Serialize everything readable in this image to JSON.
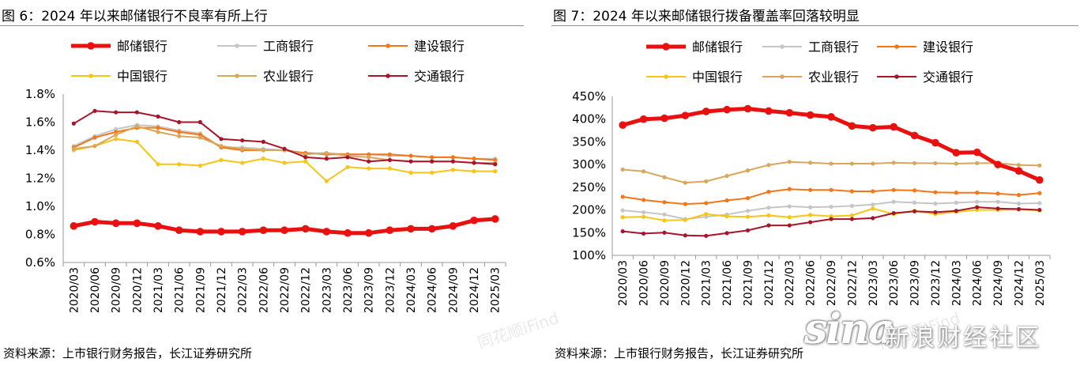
{
  "chart_data": [
    {
      "type": "line",
      "title": "图 6：2024 年以来邮储银行不良率有所上行",
      "source": "资料来源：上市银行财务报告，长江证券研究所",
      "ylim": [
        0.6,
        1.8
      ],
      "yticks": [
        "0.6%",
        "0.8%",
        "1.0%",
        "1.2%",
        "1.4%",
        "1.6%",
        "1.8%"
      ],
      "ytick_values": [
        0.6,
        0.8,
        1.0,
        1.2,
        1.4,
        1.6,
        1.8
      ],
      "legend_position": "top",
      "grid": false,
      "categories": [
        "2020/03",
        "2020/06",
        "2020/09",
        "2020/12",
        "2021/03",
        "2021/06",
        "2021/09",
        "2021/12",
        "2022/03",
        "2022/06",
        "2022/09",
        "2022/12",
        "2023/03",
        "2023/06",
        "2023/09",
        "2023/12",
        "2024/03",
        "2024/06",
        "2024/09",
        "2024/12",
        "2025/03"
      ],
      "series": [
        {
          "name": "邮储银行",
          "color": "#e8110f",
          "values": [
            0.86,
            0.89,
            0.88,
            0.88,
            0.86,
            0.83,
            0.82,
            0.82,
            0.82,
            0.83,
            0.83,
            0.84,
            0.82,
            0.81,
            0.81,
            0.83,
            0.84,
            0.84,
            0.86,
            0.9,
            0.91
          ]
        },
        {
          "name": "工商银行",
          "color": "#c6c6c6",
          "values": [
            1.43,
            1.5,
            1.55,
            1.58,
            1.57,
            1.54,
            1.52,
            1.42,
            1.42,
            1.41,
            1.4,
            1.38,
            1.38,
            1.37,
            1.37,
            1.36,
            1.36,
            1.35,
            1.35,
            1.34,
            1.34
          ]
        },
        {
          "name": "建设银行",
          "color": "#f2771a",
          "values": [
            1.42,
            1.49,
            1.53,
            1.56,
            1.56,
            1.53,
            1.51,
            1.42,
            1.4,
            1.4,
            1.4,
            1.38,
            1.37,
            1.37,
            1.37,
            1.37,
            1.36,
            1.35,
            1.35,
            1.34,
            1.33
          ]
        },
        {
          "name": "中国银行",
          "color": "#f6c517",
          "values": [
            1.4,
            1.43,
            1.48,
            1.46,
            1.3,
            1.3,
            1.29,
            1.33,
            1.31,
            1.34,
            1.31,
            1.32,
            1.18,
            1.28,
            1.27,
            1.27,
            1.24,
            1.24,
            1.26,
            1.25,
            1.25
          ]
        },
        {
          "name": "农业银行",
          "color": "#d9a75c",
          "values": [
            1.41,
            1.43,
            1.51,
            1.57,
            1.53,
            1.5,
            1.49,
            1.43,
            1.41,
            1.4,
            1.4,
            1.37,
            1.38,
            1.36,
            1.35,
            1.33,
            1.32,
            1.32,
            1.32,
            1.31,
            1.31
          ]
        },
        {
          "name": "交通银行",
          "color": "#a8152b",
          "values": [
            1.59,
            1.68,
            1.67,
            1.67,
            1.64,
            1.6,
            1.6,
            1.48,
            1.47,
            1.46,
            1.41,
            1.35,
            1.34,
            1.35,
            1.32,
            1.33,
            1.32,
            1.32,
            1.32,
            1.31,
            1.3
          ]
        }
      ]
    },
    {
      "type": "line",
      "title": "图 7：2024 年以来邮储银行拨备覆盖率回落较明显",
      "source": "资料来源：上市银行财务报告，长江证券研究所",
      "ylim": [
        100,
        450
      ],
      "yticks": [
        "100%",
        "150%",
        "200%",
        "250%",
        "300%",
        "350%",
        "400%",
        "450%"
      ],
      "ytick_values": [
        100,
        150,
        200,
        250,
        300,
        350,
        400,
        450
      ],
      "legend_position": "top",
      "grid": false,
      "categories": [
        "2020/03",
        "2020/06",
        "2020/09",
        "2020/12",
        "2021/03",
        "2021/06",
        "2021/09",
        "2021/12",
        "2022/03",
        "2022/06",
        "2022/09",
        "2022/12",
        "2023/03",
        "2023/06",
        "2023/09",
        "2023/12",
        "2024/03",
        "2024/06",
        "2024/09",
        "2024/12",
        "2025/03"
      ],
      "series": [
        {
          "name": "邮储银行",
          "color": "#e8110f",
          "values": [
            387,
            400,
            402,
            408,
            417,
            421,
            423,
            418,
            414,
            409,
            405,
            385,
            381,
            383,
            364,
            348,
            326,
            327,
            300,
            286,
            266
          ]
        },
        {
          "name": "工商银行",
          "color": "#c6c6c6",
          "values": [
            199,
            195,
            190,
            180,
            185,
            190,
            198,
            205,
            208,
            206,
            207,
            209,
            212,
            218,
            216,
            214,
            216,
            218,
            218,
            214,
            215
          ]
        },
        {
          "name": "建设银行",
          "color": "#f2771a",
          "values": [
            229,
            222,
            217,
            213,
            215,
            221,
            226,
            240,
            246,
            244,
            244,
            241,
            241,
            244,
            243,
            239,
            238,
            238,
            236,
            233,
            237
          ]
        },
        {
          "name": "中国银行",
          "color": "#f6c517",
          "values": [
            184,
            185,
            177,
            178,
            191,
            186,
            185,
            188,
            184,
            189,
            186,
            188,
            203,
            191,
            198,
            191,
            196,
            200,
            200,
            201,
            199
          ]
        },
        {
          "name": "农业银行",
          "color": "#d9a75c",
          "values": [
            289,
            285,
            272,
            260,
            263,
            275,
            287,
            299,
            306,
            304,
            302,
            302,
            302,
            304,
            303,
            303,
            302,
            303,
            303,
            299,
            298
          ]
        },
        {
          "name": "交通银行",
          "color": "#a8152b",
          "values": [
            153,
            148,
            150,
            144,
            143,
            149,
            155,
            166,
            166,
            173,
            180,
            180,
            182,
            193,
            197,
            195,
            198,
            206,
            203,
            202,
            200
          ]
        }
      ]
    }
  ],
  "watermark": "同花顺iFind",
  "sina": {
    "mark": "sina",
    "text": "新浪财经社区"
  }
}
